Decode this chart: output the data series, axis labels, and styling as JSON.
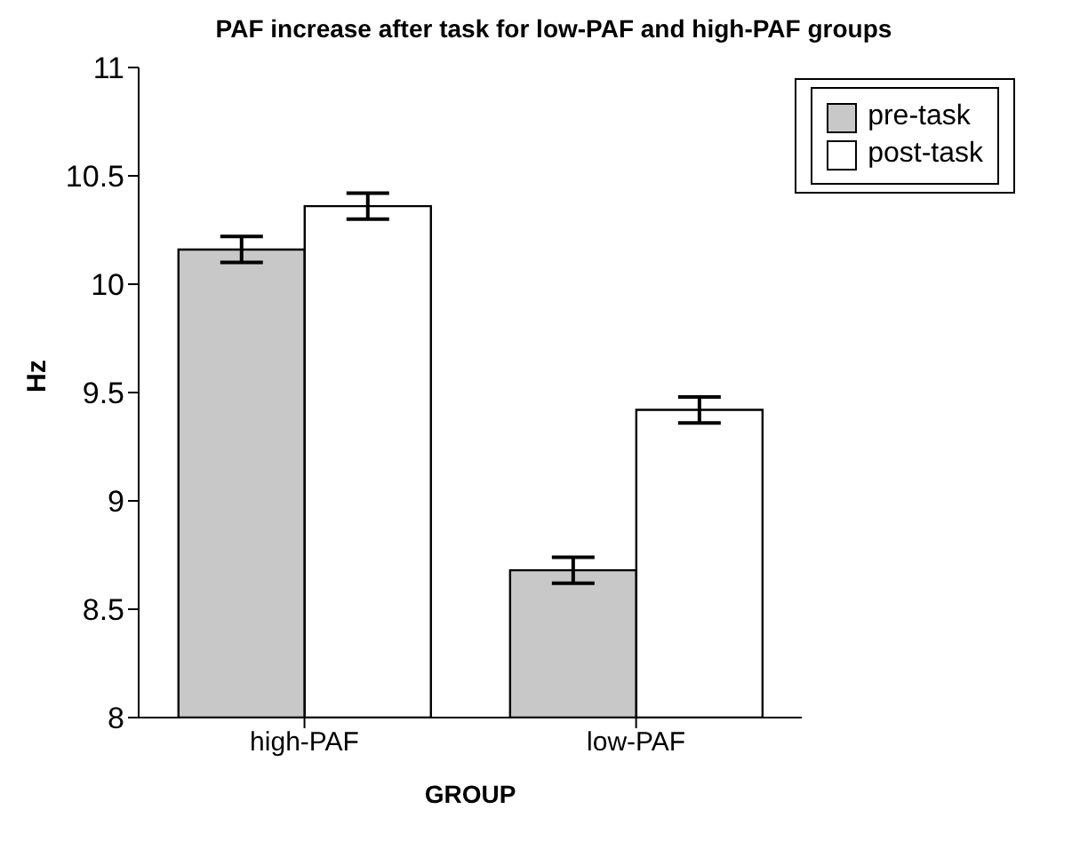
{
  "chart_data": {
    "type": "bar",
    "title": "PAF increase after task for low-PAF and high-PAF groups",
    "xlabel": "GROUP",
    "ylabel": "Hz",
    "categories": [
      "high-PAF",
      "low-PAF"
    ],
    "series": [
      {
        "name": "pre-task",
        "color": "#c8c8c8",
        "values": [
          10.16,
          8.68
        ],
        "errors": [
          0.06,
          0.06
        ]
      },
      {
        "name": "post-task",
        "color": "#ffffff",
        "values": [
          10.36,
          9.42
        ],
        "errors": [
          0.06,
          0.06
        ]
      }
    ],
    "ylim": [
      8,
      11
    ],
    "yticks": [
      8,
      8.5,
      9,
      9.5,
      10,
      10.5,
      11
    ],
    "grid": false,
    "legend": "top right"
  }
}
